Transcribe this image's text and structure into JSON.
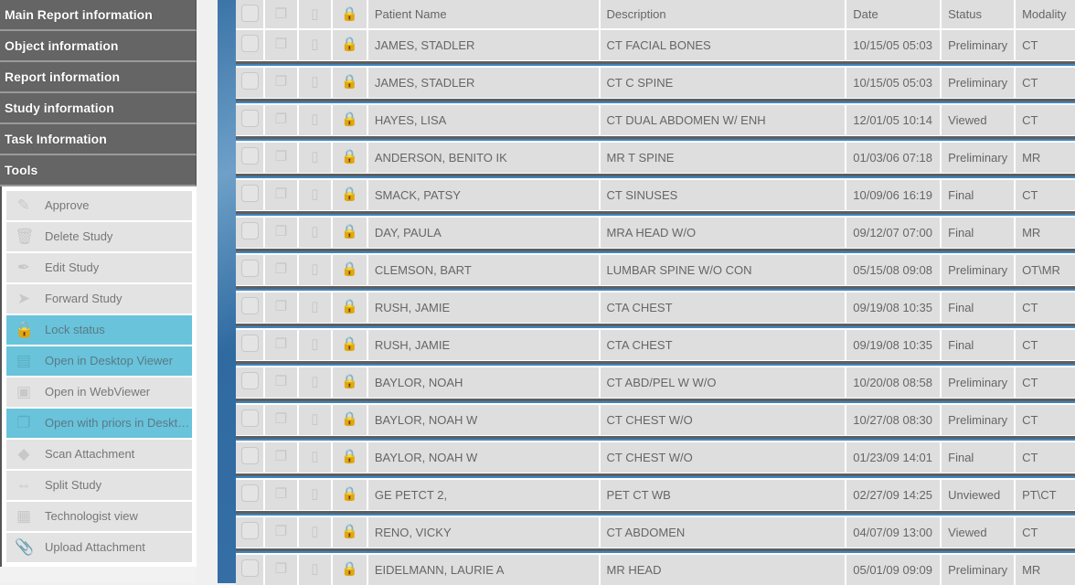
{
  "sidebar": {
    "sections": [
      "Main Report information",
      "Object information",
      "Report information",
      "Study information",
      "Task Information",
      "Tools"
    ],
    "tools": [
      {
        "label": "Approve",
        "icon": "approve-icon",
        "highlighted": false
      },
      {
        "label": "Delete Study",
        "icon": "trash-icon",
        "highlighted": false
      },
      {
        "label": "Edit Study",
        "icon": "pen-icon",
        "highlighted": false
      },
      {
        "label": "Forward Study",
        "icon": "paper-plane-icon",
        "highlighted": false
      },
      {
        "label": "Lock status",
        "icon": "lock-icon",
        "highlighted": true
      },
      {
        "label": "Open in Desktop Viewer",
        "icon": "desktop-viewer-icon",
        "highlighted": true
      },
      {
        "label": "Open in WebViewer",
        "icon": "web-viewer-icon",
        "highlighted": false
      },
      {
        "label": "Open with priors in Desktop Viewer",
        "icon": "priors-icon",
        "highlighted": true
      },
      {
        "label": "Scan Attachment",
        "icon": "scanner-icon",
        "highlighted": false
      },
      {
        "label": "Split Study",
        "icon": "split-icon",
        "highlighted": false
      },
      {
        "label": "Technologist view",
        "icon": "grid-icon",
        "highlighted": false
      },
      {
        "label": "Upload Attachment",
        "icon": "paperclip-icon",
        "highlighted": false
      }
    ]
  },
  "table": {
    "columns": [
      "Patient Name",
      "Description",
      "Date",
      "Status",
      "Modality"
    ],
    "rows": [
      [
        "JAMES, STADLER",
        "CT FACIAL BONES",
        "10/15/05 05:03",
        "Preliminary",
        "CT"
      ],
      [
        "JAMES, STADLER",
        "CT C SPINE",
        "10/15/05 05:03",
        "Preliminary",
        "CT"
      ],
      [
        "HAYES, LISA",
        "CT DUAL ABDOMEN W/ ENH",
        "12/01/05 10:14",
        "Viewed",
        "CT"
      ],
      [
        "ANDERSON, BENITO IK",
        "MR T SPINE",
        "01/03/06 07:18",
        "Preliminary",
        "MR"
      ],
      [
        "SMACK, PATSY",
        "CT SINUSES",
        "10/09/06 16:19",
        "Final",
        "CT"
      ],
      [
        "DAY, PAULA",
        "MRA HEAD W/O",
        "09/12/07 07:00",
        "Final",
        "MR"
      ],
      [
        "CLEMSON, BART",
        "LUMBAR SPINE W/O CON",
        "05/15/08 09:08",
        "Preliminary",
        "OT\\MR"
      ],
      [
        "RUSH, JAMIE",
        "CTA CHEST",
        "09/19/08 10:35",
        "Final",
        "CT"
      ],
      [
        "RUSH, JAMIE",
        "CTA CHEST",
        "09/19/08 10:35",
        "Final",
        "CT"
      ],
      [
        "BAYLOR, NOAH",
        "CT ABD/PEL W W/O",
        "10/20/08 08:58",
        "Preliminary",
        "CT"
      ],
      [
        "BAYLOR, NOAH W",
        "CT CHEST W/O",
        "10/27/08 08:30",
        "Preliminary",
        "CT"
      ],
      [
        "BAYLOR, NOAH W",
        "CT CHEST W/O",
        "01/23/09 14:01",
        "Final",
        "CT"
      ],
      [
        "GE PETCT 2,",
        "PET CT WB",
        "02/27/09 14:25",
        "Unviewed",
        "PT\\CT"
      ],
      [
        "RENO, VICKY",
        "CT ABDOMEN",
        "04/07/09 13:00",
        "Viewed",
        "CT"
      ],
      [
        "EIDELMANN, LAURIE A",
        "MR HEAD",
        "05/01/09 09:09",
        "Preliminary",
        "MR"
      ]
    ]
  },
  "colors": {
    "header": "#656565",
    "highlight": "#69c3da",
    "row": "#dedede",
    "separator_blue": "#3d85c0"
  }
}
